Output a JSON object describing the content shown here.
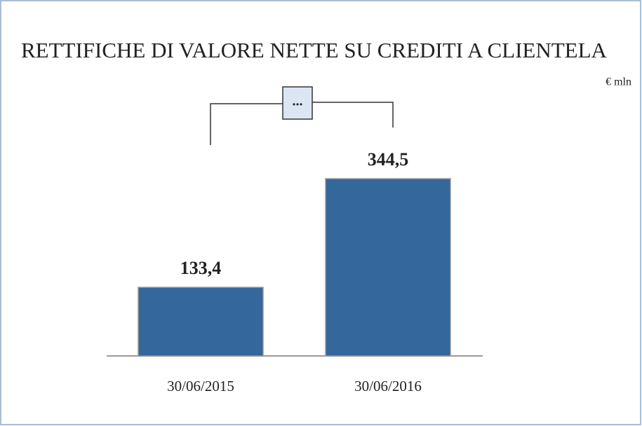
{
  "chart_data": {
    "type": "bar",
    "title": "RETTIFICHE DI VALORE NETTE SU CREDITI A CLIENTELA",
    "subtitle": "€ mln",
    "annotation": "...",
    "categories": [
      "30/06/2015",
      "30/06/2016"
    ],
    "values": [
      133.4,
      344.5
    ],
    "value_labels": [
      "133,4",
      "344,5"
    ],
    "color": "#34679c"
  }
}
